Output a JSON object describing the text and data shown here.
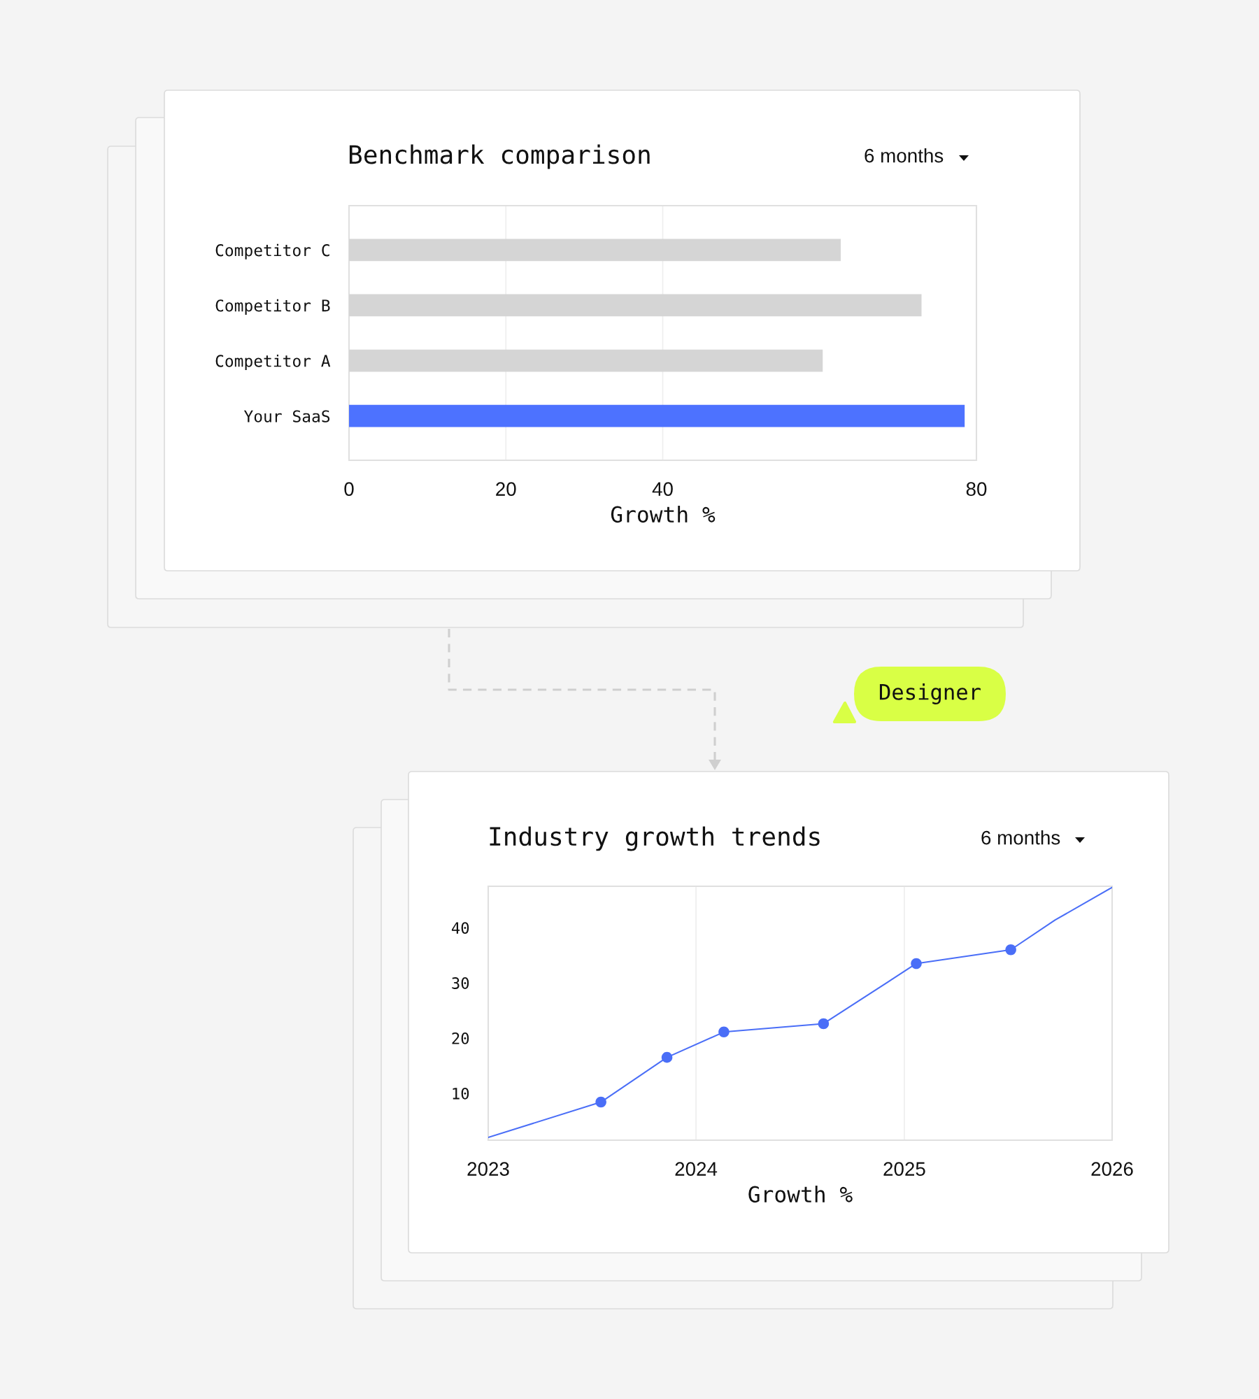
{
  "chart_data": [
    {
      "type": "bar",
      "orientation": "horizontal",
      "title": "Benchmark comparison",
      "xlabel": "Growth %",
      "annotations": [
        "6 months"
      ],
      "categories": [
        "Competitor C",
        "Competitor B",
        "Competitor A",
        "Your SaaS"
      ],
      "values": [
        62.7,
        73.0,
        60.4,
        78.5
      ],
      "colors": [
        "#d5d5d5",
        "#d5d5d5",
        "#d5d5d5",
        "#4d72ff"
      ],
      "xlim": [
        0,
        80
      ],
      "xticks": [
        0,
        20,
        40,
        80
      ],
      "grid": "x"
    },
    {
      "type": "line",
      "title": "Industry growth trends",
      "xlabel": "Growth %",
      "annotations": [
        "6 months",
        "Designer"
      ],
      "series": [
        {
          "color": "#4a6ef7",
          "x": [
            "2023-01-01",
            "2023-07-18",
            "2023-11-11",
            "2024-02-19",
            "2024-08-12",
            "2025-01-22",
            "2025-07-07",
            "2025-09-23",
            "2026-01-01"
          ],
          "values": [
            2.0,
            8.4,
            16.5,
            21.1,
            22.6,
            33.5,
            36.0,
            41.4,
            47.3
          ]
        },
        {
          "type": "scatter",
          "marker": "circle",
          "color": "#4a6ef7",
          "x": [
            "2023-07-18",
            "2023-11-11",
            "2024-02-19",
            "2024-08-12",
            "2025-01-22",
            "2025-07-07"
          ],
          "values": [
            8.4,
            16.5,
            21.1,
            22.6,
            33.5,
            36.0
          ]
        }
      ],
      "xlim": [
        "2023",
        "2026"
      ],
      "xticks": [
        "2023",
        "2024",
        "2025",
        "2026"
      ],
      "ylim": [
        1.5,
        47.5
      ],
      "yticks": [
        10,
        20,
        30,
        40
      ],
      "grid": "x"
    }
  ]
}
